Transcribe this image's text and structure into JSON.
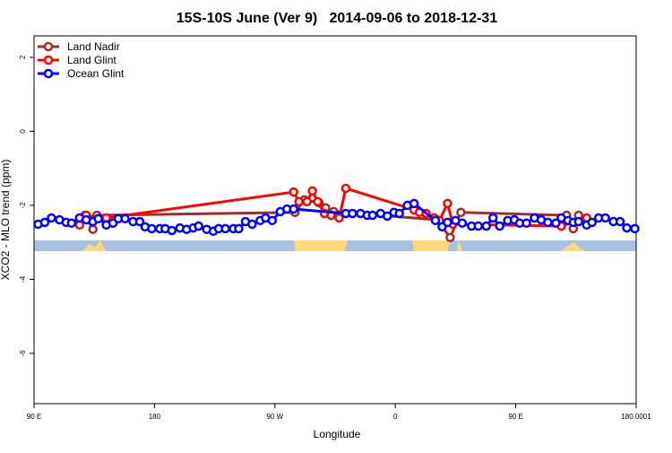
{
  "chart_data": {
    "type": "line",
    "title": "15S-10S June (Ver 9)   2014-09-06 to 2018-12-31",
    "x_label": "Longitude",
    "y_label": "XCO2 - MLO trend (ppm)",
    "xlim": [
      90,
      540
    ],
    "ylim": [
      -7.36,
      2.58
    ],
    "xticks": [
      {
        "value": 90,
        "label": "90 E"
      },
      180,
      {
        "value": 270,
        "label": "90 W"
      },
      {
        "value": 360,
        "label": "0"
      },
      {
        "value": 450,
        "label": "90 E"
      },
      180.0001
    ],
    "yticks": [
      2,
      0,
      -2,
      -4,
      -6
    ],
    "legend": "top-left",
    "series": [
      {
        "name": "Land Nadir",
        "color": "#a52a2a",
        "x": [
          128,
          134,
          137,
          285,
          292,
          303,
          308,
          314,
          391,
          401,
          409,
          488,
          493,
          497
        ],
        "values": [
          -2.27,
          -2.65,
          -2.27,
          -2.19,
          -1.85,
          -1.93,
          -2.07,
          -2.17,
          -2.39,
          -2.87,
          -2.19,
          -2.27,
          -2.63,
          -2.27
        ]
      },
      {
        "name": "Land Glint",
        "color": "#ff0000",
        "x": [
          124,
          129,
          144,
          284,
          288,
          294,
          298,
          302,
          307,
          312,
          318,
          323,
          374,
          378,
          383,
          389,
          393,
          399,
          403,
          484,
          503
        ],
        "values": [
          -2.53,
          -2.27,
          -2.34,
          -1.64,
          -1.9,
          -1.9,
          -1.61,
          -1.9,
          -2.22,
          -2.27,
          -2.34,
          -1.54,
          -2.12,
          -2.19,
          -2.22,
          -2.34,
          -2.41,
          -1.95,
          -2.51,
          -2.56,
          -2.34
        ]
      },
      {
        "name": "Ocean Glint",
        "color": "#0000ff",
        "x": [
          93,
          98,
          103,
          109,
          114,
          118,
          124,
          129,
          134,
          138,
          144,
          149,
          153,
          158,
          164,
          169,
          173,
          178,
          184,
          188,
          193,
          199,
          204,
          209,
          213,
          219,
          224,
          228,
          233,
          239,
          243,
          248,
          253,
          259,
          263,
          268,
          274,
          279,
          284,
          323,
          328,
          334,
          339,
          343,
          349,
          354,
          359,
          363,
          369,
          374,
          390,
          395,
          399,
          405,
          410,
          417,
          422,
          428,
          433,
          438,
          444,
          449,
          453,
          458,
          464,
          469,
          474,
          480,
          484,
          489,
          493,
          497,
          503,
          507,
          512,
          517,
          523,
          528,
          533,
          539
        ],
        "values": [
          -2.51,
          -2.46,
          -2.34,
          -2.39,
          -2.46,
          -2.48,
          -2.34,
          -2.39,
          -2.44,
          -2.36,
          -2.53,
          -2.48,
          -2.36,
          -2.36,
          -2.44,
          -2.44,
          -2.58,
          -2.63,
          -2.63,
          -2.63,
          -2.68,
          -2.61,
          -2.65,
          -2.61,
          -2.56,
          -2.65,
          -2.7,
          -2.63,
          -2.63,
          -2.63,
          -2.63,
          -2.44,
          -2.51,
          -2.41,
          -2.34,
          -2.41,
          -2.17,
          -2.1,
          -2.1,
          -2.22,
          -2.22,
          -2.22,
          -2.27,
          -2.27,
          -2.22,
          -2.29,
          -2.19,
          -2.22,
          -2.0,
          -1.95,
          -2.41,
          -2.58,
          -2.46,
          -2.41,
          -2.48,
          -2.56,
          -2.56,
          -2.56,
          -2.34,
          -2.56,
          -2.41,
          -2.39,
          -2.48,
          -2.48,
          -2.34,
          -2.39,
          -2.46,
          -2.48,
          -2.34,
          -2.41,
          -2.46,
          -2.44,
          -2.53,
          -2.46,
          -2.34,
          -2.34,
          -2.44,
          -2.44,
          -2.61,
          -2.63
        ]
      }
    ]
  }
}
